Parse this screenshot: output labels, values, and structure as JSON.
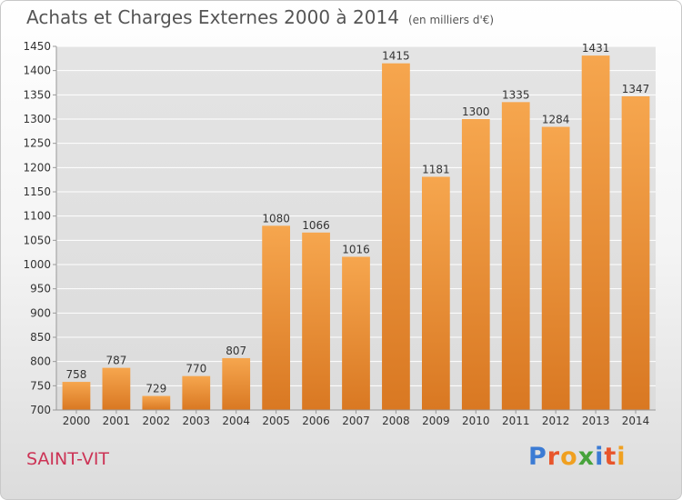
{
  "header": {
    "title": "Achats et Charges Externes 2000 à 2014",
    "unit": "(en milliers d'€)"
  },
  "footer": {
    "city": "SAINT-VIT",
    "brand": "Proxiti",
    "brand_colors": [
      "#3b7bd4",
      "#e8552b",
      "#f0a020",
      "#47a33b",
      "#3b7bd4",
      "#e8552b",
      "#f0a020"
    ]
  },
  "colors": {
    "bar_light": "#f6a64e",
    "bar_dark": "#d97822",
    "grid": "#ffffff",
    "plot_bg": "#e6e6e6",
    "axis_text": "#333333"
  },
  "chart_data": {
    "type": "bar",
    "title": "Achats et Charges Externes 2000 à 2014",
    "subtitle": "(en milliers d'€)",
    "categories": [
      "2000",
      "2001",
      "2002",
      "2003",
      "2004",
      "2005",
      "2006",
      "2007",
      "2008",
      "2009",
      "2010",
      "2011",
      "2012",
      "2013",
      "2014"
    ],
    "values": [
      758,
      787,
      729,
      770,
      807,
      1080,
      1066,
      1016,
      1415,
      1181,
      1300,
      1335,
      1284,
      1431,
      1347
    ],
    "ylim": [
      700,
      1450
    ],
    "yticks": [
      700,
      750,
      800,
      850,
      900,
      950,
      1000,
      1050,
      1100,
      1150,
      1200,
      1250,
      1300,
      1350,
      1400,
      1450
    ],
    "grid": true,
    "legend": "none"
  }
}
